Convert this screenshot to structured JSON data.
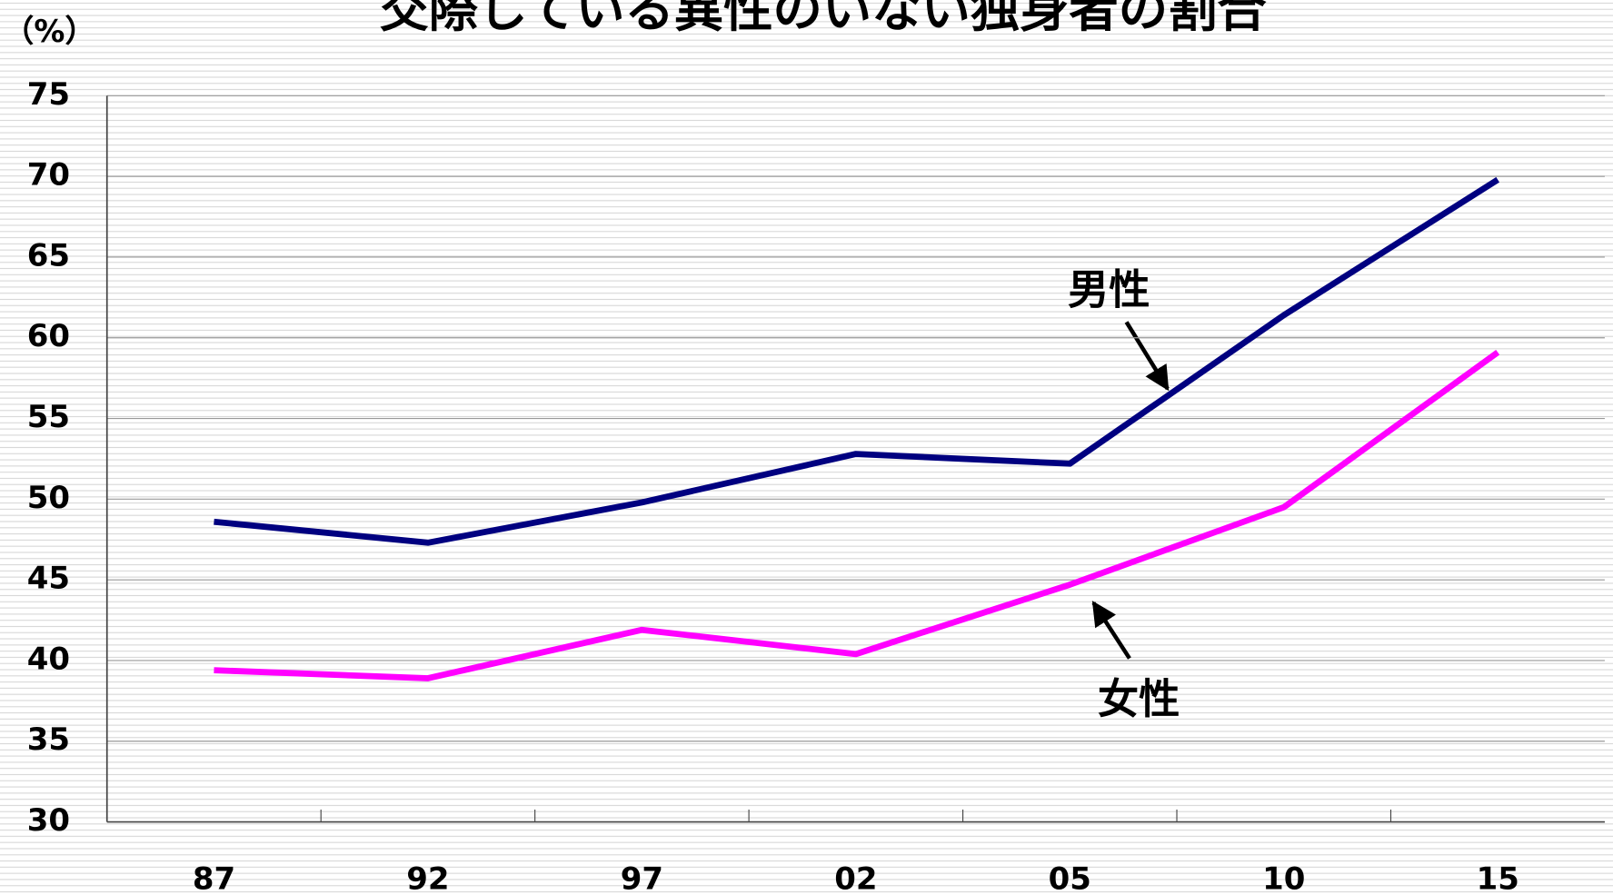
{
  "chart_data": {
    "type": "line",
    "title": "交際している異性のいない独身者の割合",
    "y_label": "（%）",
    "categories": [
      "87",
      "92",
      "97",
      "02",
      "05",
      "10",
      "15"
    ],
    "series": [
      {
        "name": "男性",
        "color": "#000080",
        "values": [
          48.6,
          47.3,
          49.8,
          52.8,
          52.2,
          61.4,
          69.8
        ]
      },
      {
        "name": "女性",
        "color": "#ff00ff",
        "values": [
          39.4,
          38.9,
          41.9,
          40.4,
          44.7,
          49.5,
          59.1
        ]
      }
    ],
    "ylim": [
      30,
      75
    ],
    "yticks": [
      30,
      35,
      40,
      45,
      50,
      55,
      60,
      65,
      70,
      75
    ],
    "grid": true
  }
}
